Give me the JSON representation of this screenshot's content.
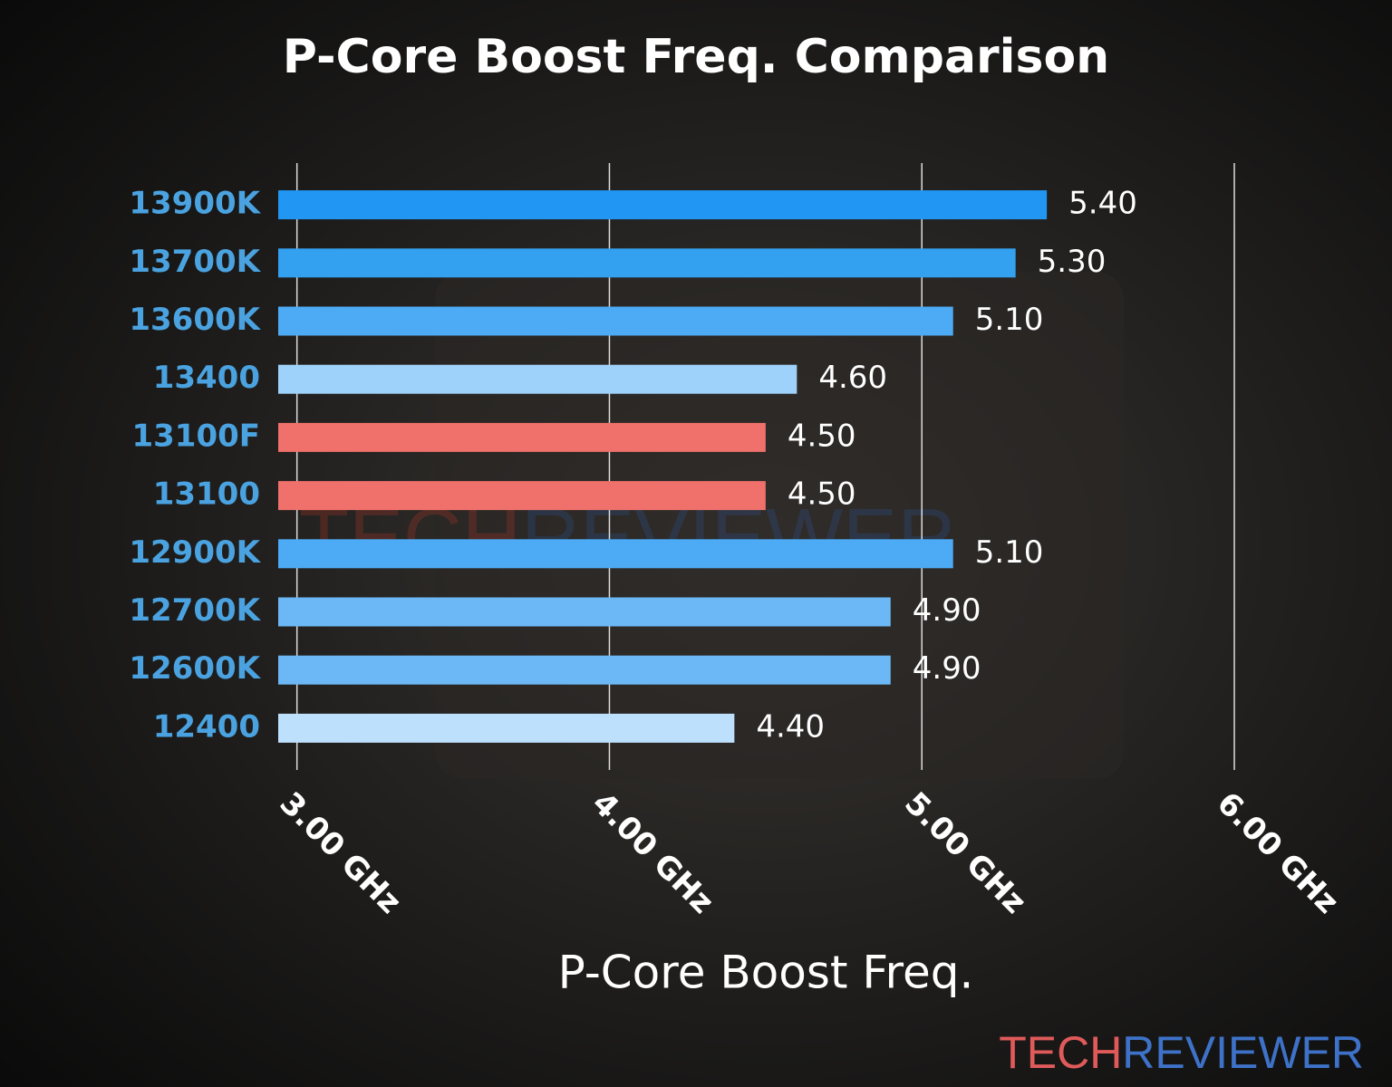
{
  "chart_data": {
    "type": "barh",
    "title": "P-Core Boost Freq. Comparison",
    "x_label": "P-Core Boost Freq.",
    "categories": [
      "13900K",
      "13700K",
      "13600K",
      "13400",
      "13100F",
      "13100",
      "12900K",
      "12700K",
      "12600K",
      "12400"
    ],
    "values": [
      5.4,
      5.3,
      5.1,
      4.6,
      4.5,
      4.5,
      5.1,
      4.9,
      4.9,
      4.4
    ],
    "value_labels": [
      "5.40",
      "5.30",
      "5.10",
      "4.60",
      "4.50",
      "4.50",
      "5.10",
      "4.90",
      "4.90",
      "4.40"
    ],
    "colors": [
      "#2196f3",
      "#33a0f0",
      "#4dabf5",
      "#9fd2fb",
      "#f0716b",
      "#f0716b",
      "#4dabf5",
      "#6cb8f6",
      "#6cb8f6",
      "#bde0fd"
    ],
    "xlim": [
      2.94,
      6.0
    ],
    "xticks": [
      {
        "value": 3,
        "label": "3.00 GHz"
      },
      {
        "value": 4,
        "label": "4.00 GHz"
      },
      {
        "value": 5,
        "label": "5.00 GHz"
      },
      {
        "value": 6,
        "label": "6.00 GHz"
      }
    ],
    "grid": true,
    "watermark": [
      "TECH",
      "REVIEWER"
    ]
  }
}
